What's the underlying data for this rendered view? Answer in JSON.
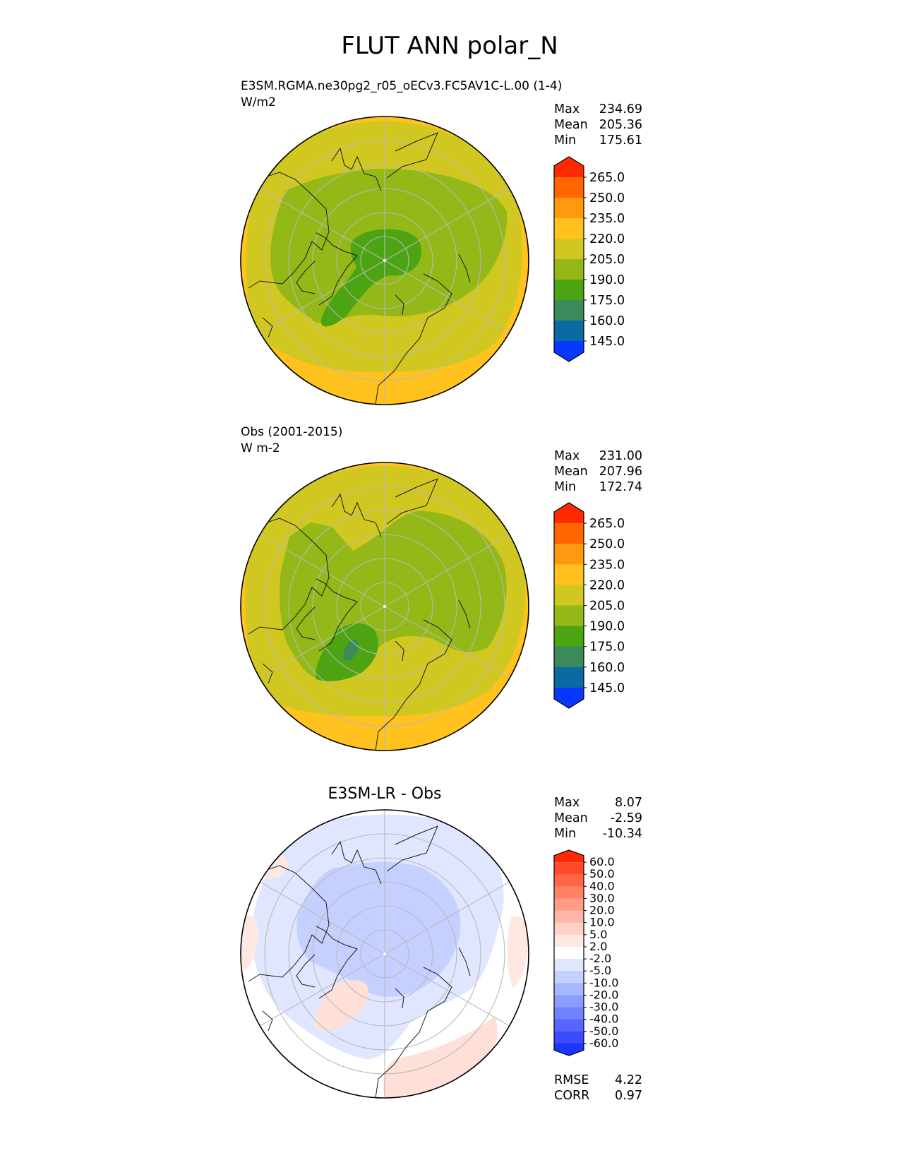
{
  "title": "FLUT ANN polar_N",
  "panels": [
    {
      "name": "test",
      "label_line1": "E3SM.RGMA.ne30pg2_r05_oECv3.FC5AV1C-L.00 (1-4)",
      "label_line2": "W/m2",
      "center_title": "",
      "stats": {
        "max_label": "Max",
        "max": "234.69",
        "mean_label": "Mean",
        "mean": "205.36",
        "min_label": "Min",
        "min": "175.61"
      }
    },
    {
      "name": "reference",
      "label_line1": "Obs (2001-2015)",
      "label_line2": "W m-2",
      "center_title": "",
      "stats": {
        "max_label": "Max",
        "max": "231.00",
        "mean_label": "Mean",
        "mean": "207.96",
        "min_label": "Min",
        "min": "172.74"
      }
    },
    {
      "name": "difference",
      "label_line1": "",
      "label_line2": "",
      "center_title": "E3SM-LR - Obs",
      "stats": {
        "max_label": "Max",
        "max": "8.07",
        "mean_label": "Mean",
        "mean": "-2.59",
        "min_label": "Min",
        "min": "-10.34"
      },
      "metrics": {
        "rmse_label": "RMSE",
        "rmse": "4.22",
        "corr_label": "CORR",
        "corr": "0.97"
      }
    }
  ],
  "chart_data": [
    {
      "type": "heatmap",
      "projection": "north polar stereographic",
      "title": "E3SM.RGMA.ne30pg2_r05_oECv3.FC5AV1C-L.00 (1-4)",
      "units": "W/m2",
      "colorbar": {
        "ticks": [
          "265.0",
          "250.0",
          "235.0",
          "220.0",
          "205.0",
          "190.0",
          "175.0",
          "160.0",
          "145.0"
        ],
        "colors": [
          "#ff2a00",
          "#ff6600",
          "#ff9a10",
          "#ffc21e",
          "#d0c820",
          "#93b818",
          "#4ca412",
          "#3a8a5c",
          "#0a6aa2",
          "#0838ff"
        ],
        "extend": "both"
      },
      "stats": {
        "max": 234.69,
        "mean": 205.36,
        "min": 175.61
      }
    },
    {
      "type": "heatmap",
      "projection": "north polar stereographic",
      "title": "Obs (2001-2015)",
      "units": "W m-2",
      "colorbar": {
        "ticks": [
          "265.0",
          "250.0",
          "235.0",
          "220.0",
          "205.0",
          "190.0",
          "175.0",
          "160.0",
          "145.0"
        ],
        "colors": [
          "#ff2a00",
          "#ff6600",
          "#ff9a10",
          "#ffc21e",
          "#d0c820",
          "#93b818",
          "#4ca412",
          "#3a8a5c",
          "#0a6aa2",
          "#0838ff"
        ],
        "extend": "both"
      },
      "stats": {
        "max": 231.0,
        "mean": 207.96,
        "min": 172.74
      }
    },
    {
      "type": "heatmap",
      "projection": "north polar stereographic",
      "title": "E3SM-LR - Obs",
      "colorbar": {
        "ticks": [
          "60.0",
          "50.0",
          "40.0",
          "30.0",
          "20.0",
          "10.0",
          "5.0",
          "2.0",
          "-2.0",
          "-5.0",
          "-10.0",
          "-20.0",
          "-30.0",
          "-40.0",
          "-50.0",
          "-60.0"
        ],
        "colors": [
          "#ff2a00",
          "#ff4a2a",
          "#ff6648",
          "#ff8266",
          "#ff9c86",
          "#ffb6a6",
          "#ffd0c6",
          "#ffe8e2",
          "#ffffff",
          "#e0e6ff",
          "#c6d0ff",
          "#a8b6ff",
          "#8c9cff",
          "#7282ff",
          "#5866ff",
          "#3c4aff",
          "#1a36ff"
        ],
        "extend": "both"
      },
      "stats": {
        "max": 8.07,
        "mean": -2.59,
        "min": -10.34
      },
      "metrics": {
        "rmse": 4.22,
        "corr": 0.97
      }
    }
  ]
}
